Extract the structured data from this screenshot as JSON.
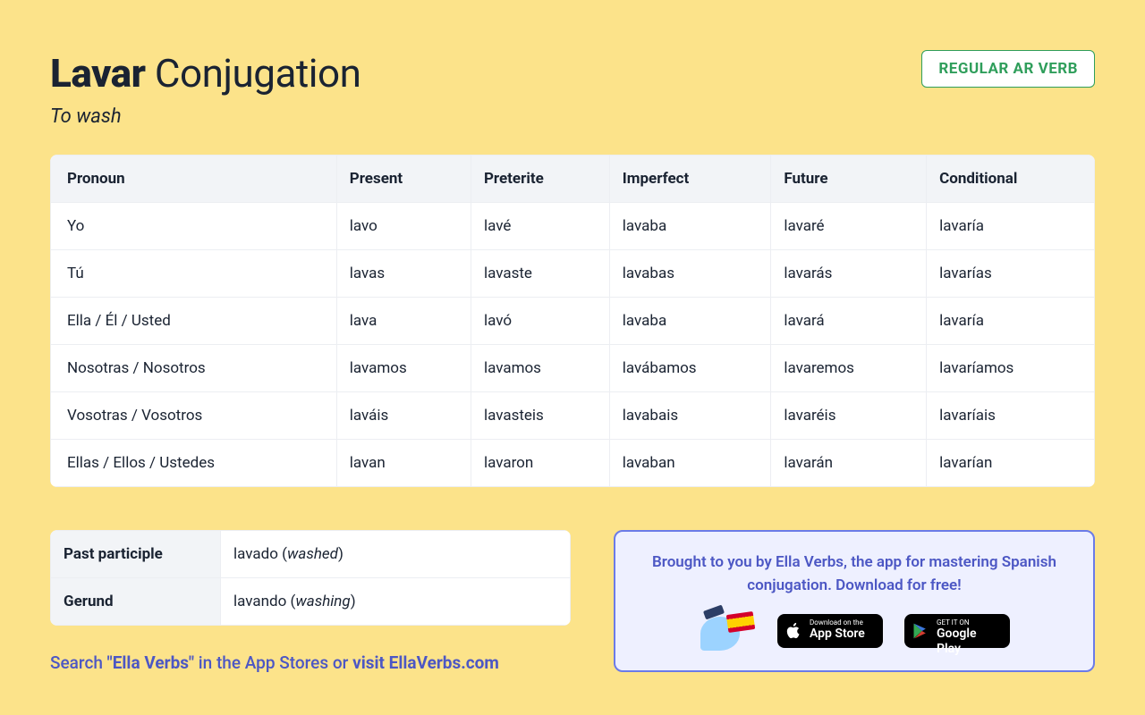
{
  "header": {
    "verb": "Lavar",
    "title_rest": "Conjugation",
    "subtitle": "To wash",
    "badge": "REGULAR AR VERB"
  },
  "colors": {
    "page_bg": "#fce38a",
    "table_bg": "#ffffff",
    "header_row_bg": "#f2f4f7",
    "border": "#eceef2",
    "text": "#1a2332",
    "badge_border": "#2f9e5b",
    "badge_text": "#2f9e5b",
    "promo_bg": "#eef0ff",
    "promo_border": "#6b7be8",
    "promo_text": "#4c57c4",
    "link_text": "#4c57c4"
  },
  "table": {
    "columns": [
      "Pronoun",
      "Present",
      "Preterite",
      "Imperfect",
      "Future",
      "Conditional"
    ],
    "rows": [
      [
        "Yo",
        "lavo",
        "lavé",
        "lavaba",
        "lavaré",
        "lavaría"
      ],
      [
        "Tú",
        "lavas",
        "lavaste",
        "lavabas",
        "lavarás",
        "lavarías"
      ],
      [
        "Ella / Él / Usted",
        "lava",
        "lavó",
        "lavaba",
        "lavará",
        "lavaría"
      ],
      [
        "Nosotras / Nosotros",
        "lavamos",
        "lavamos",
        "lavábamos",
        "lavaremos",
        "lavaríamos"
      ],
      [
        "Vosotras / Vosotros",
        "laváis",
        "lavasteis",
        "lavabais",
        "lavaréis",
        "lavaríais"
      ],
      [
        "Ellas / Ellos / Ustedes",
        "lavan",
        "lavaron",
        "lavaban",
        "lavarán",
        "lavarían"
      ]
    ]
  },
  "forms": {
    "past_participle": {
      "label": "Past participle",
      "value": "lavado",
      "translation": "washed"
    },
    "gerund": {
      "label": "Gerund",
      "value": "lavando",
      "translation": "washing"
    }
  },
  "promo": {
    "text": "Brought to you by Ella Verbs, the app for mastering Spanish conjugation. Download for free!",
    "app_store": {
      "small": "Download on the",
      "big": "App Store"
    },
    "google_play": {
      "small": "GET IT ON",
      "big": "Google Play"
    }
  },
  "search_line": {
    "prefix": "Search ",
    "quoted": "\"Ella Verbs\"",
    "middle": " in the App Stores or ",
    "link": "visit EllaVerbs.com"
  }
}
